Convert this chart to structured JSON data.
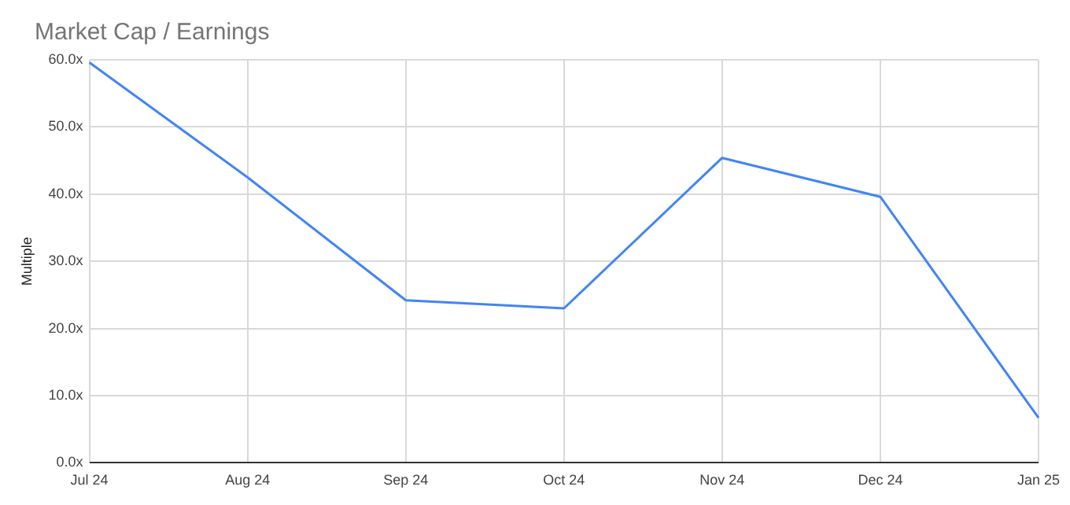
{
  "chart_data": {
    "type": "line",
    "title": "Market Cap / Earnings",
    "ylabel": "Multiple",
    "categories": [
      "Jul 24",
      "Aug 24",
      "Sep 24",
      "Oct 24",
      "Nov 24",
      "Dec 24",
      "Jan 25"
    ],
    "series": [
      {
        "color": "#4285f4",
        "values": [
          59.6,
          42.5,
          24.2,
          23,
          45.4,
          39.6,
          6.7
        ]
      }
    ],
    "ylim": [
      0,
      60
    ],
    "yticks": [
      {
        "value": 0,
        "label": "0.0x"
      },
      {
        "value": 10,
        "label": "10.0x"
      },
      {
        "value": 20,
        "label": "20.0x"
      },
      {
        "value": 30,
        "label": "30.0x"
      },
      {
        "value": 40,
        "label": "40.0x"
      },
      {
        "value": 50,
        "label": "50.0x"
      },
      {
        "value": 60,
        "label": "60.0x"
      }
    ],
    "grid": true,
    "legend": false,
    "marker": "none",
    "line_style": "solid"
  }
}
